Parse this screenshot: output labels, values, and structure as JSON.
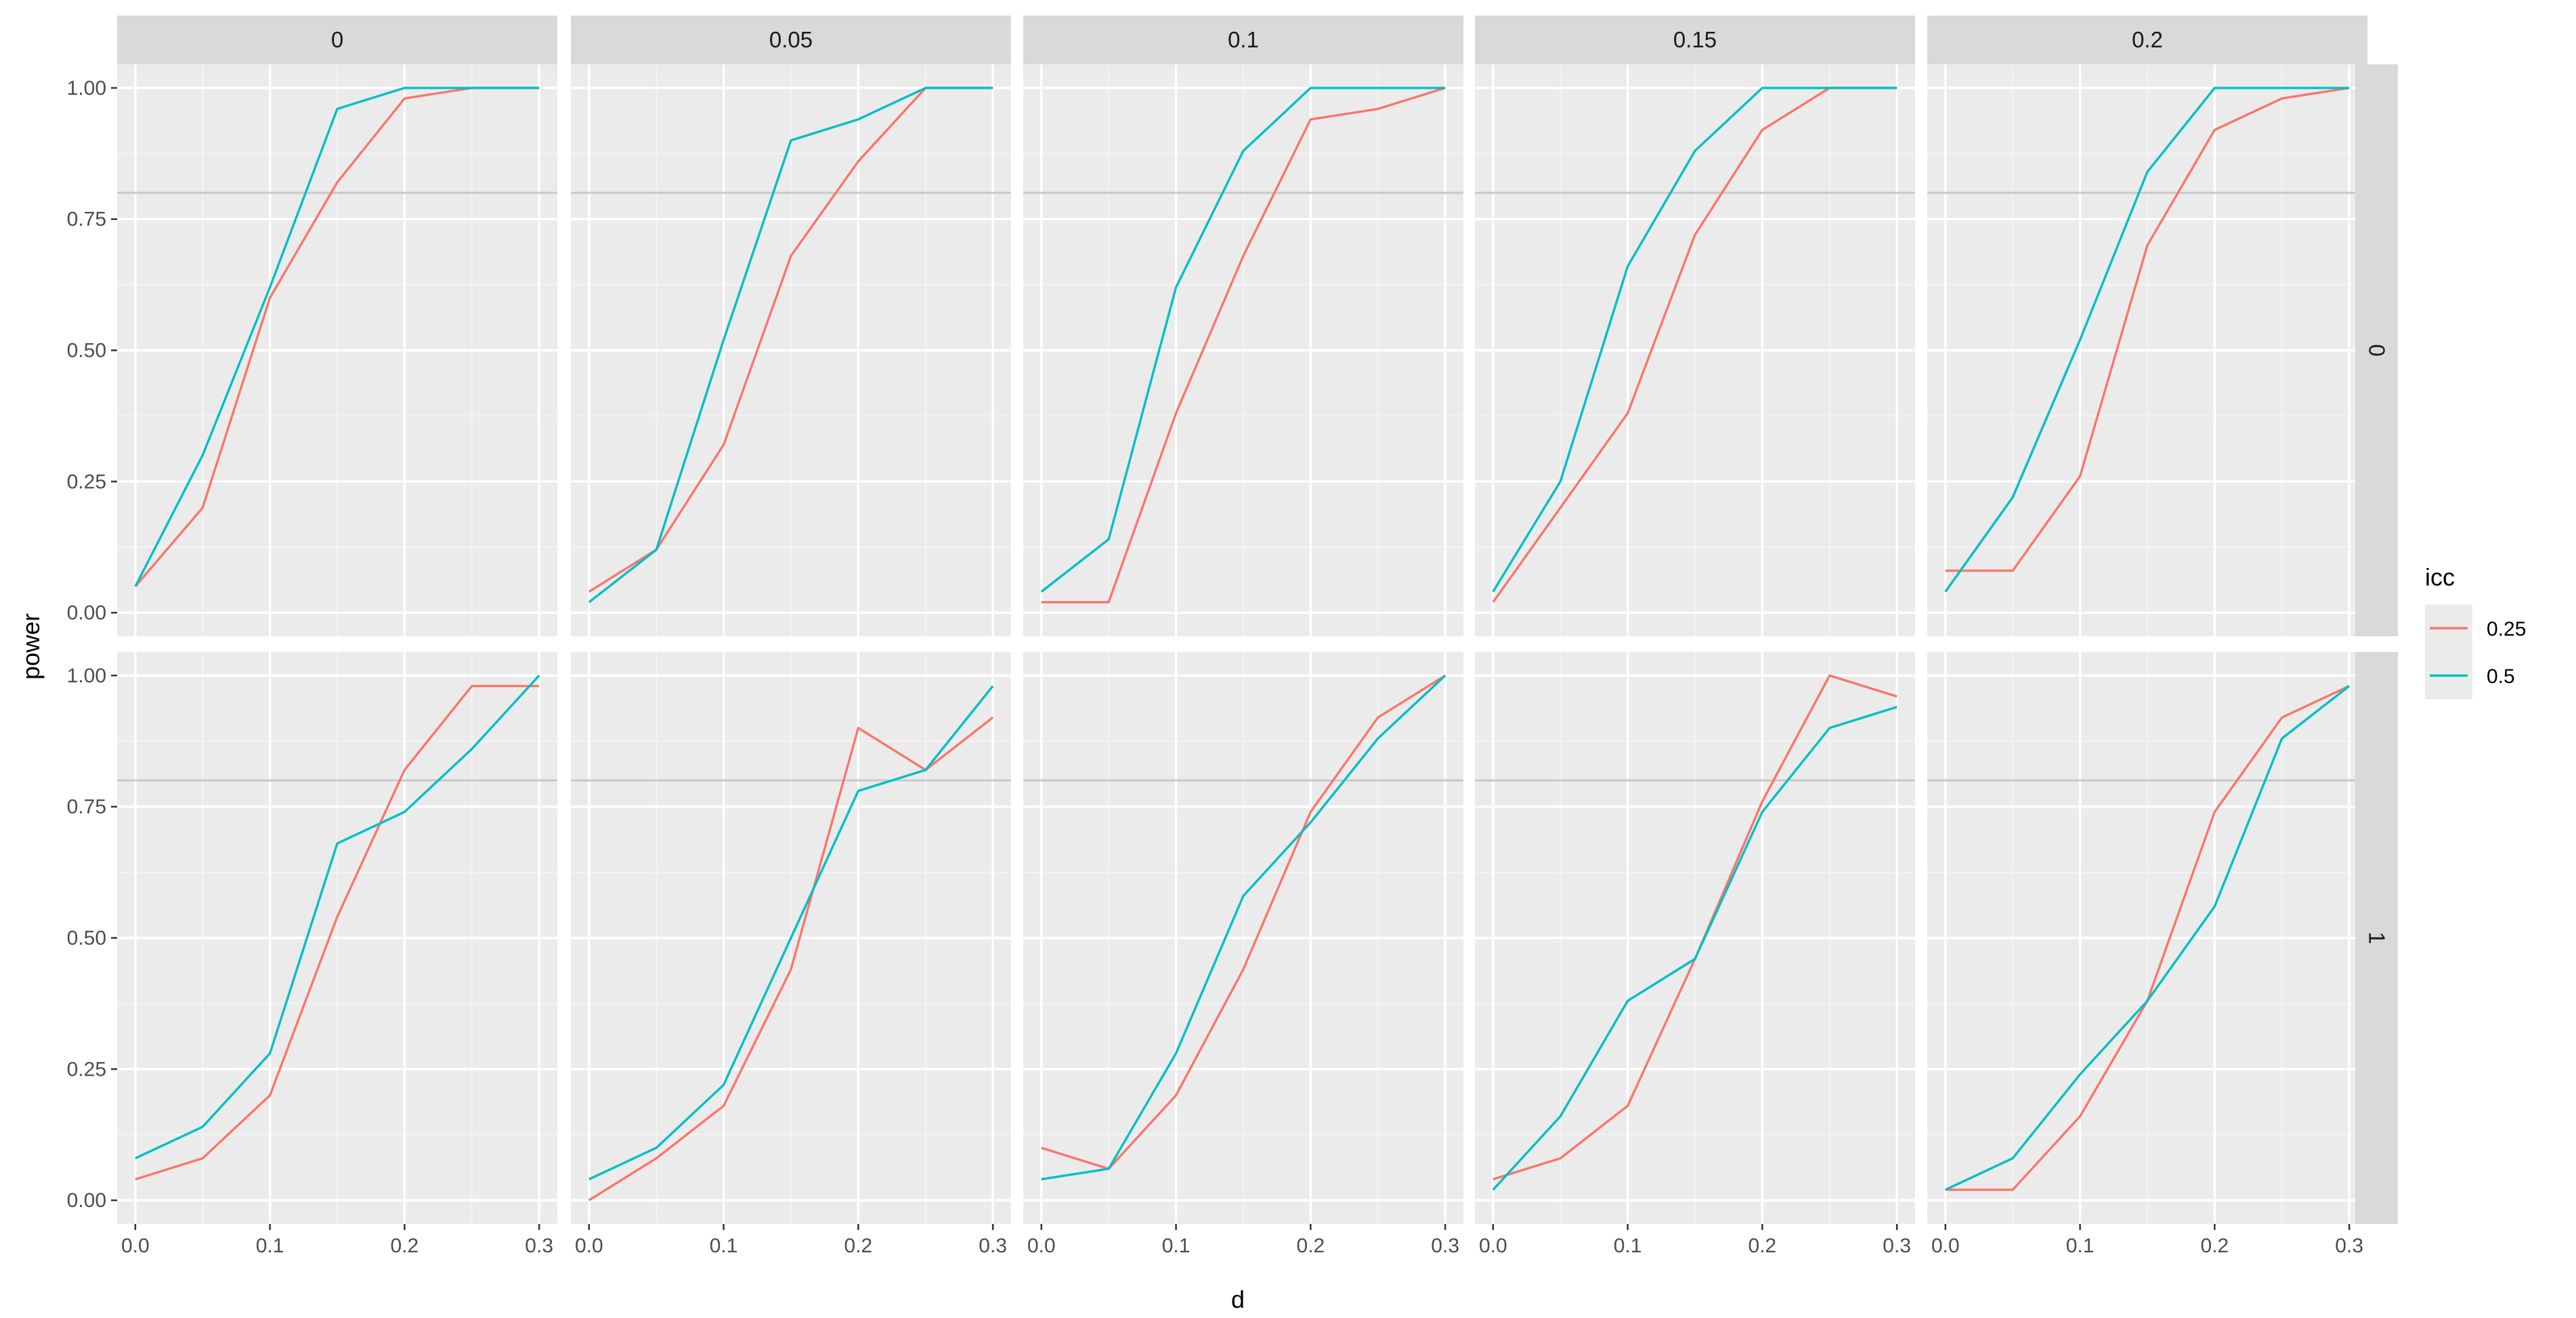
{
  "chart_data": {
    "type": "line",
    "xlabel": "d",
    "ylabel": "power",
    "xlim": [
      0,
      0.3
    ],
    "ylim": [
      0,
      1
    ],
    "x": [
      0,
      0.05,
      0.1,
      0.15,
      0.2,
      0.25,
      0.3
    ],
    "x_ticks": [
      "0.0",
      "0.1",
      "0.2",
      "0.3"
    ],
    "y_ticks": [
      "0.00",
      "0.25",
      "0.50",
      "0.75",
      "1.00"
    ],
    "reference_line_y": 0.8,
    "grid": true,
    "legend": {
      "title": "icc",
      "position": "right",
      "entries": [
        {
          "name": "0.25",
          "color": "#f8766d"
        },
        {
          "name": "0.5",
          "color": "#00bfc4"
        }
      ]
    },
    "facet_columns": [
      "0",
      "0.05",
      "0.1",
      "0.15",
      "0.2"
    ],
    "facet_rows": [
      "0",
      "1"
    ],
    "panels": [
      {
        "col": "0",
        "row": "0",
        "series": [
          {
            "name": "0.25",
            "values": [
              0.05,
              0.2,
              0.6,
              0.82,
              0.98,
              1.0,
              1.0
            ]
          },
          {
            "name": "0.5",
            "values": [
              0.05,
              0.3,
              0.62,
              0.96,
              1.0,
              1.0,
              1.0
            ]
          }
        ]
      },
      {
        "col": "0.05",
        "row": "0",
        "series": [
          {
            "name": "0.25",
            "values": [
              0.04,
              0.12,
              0.32,
              0.68,
              0.86,
              1.0,
              1.0
            ]
          },
          {
            "name": "0.5",
            "values": [
              0.02,
              0.12,
              0.52,
              0.9,
              0.94,
              1.0,
              1.0
            ]
          }
        ]
      },
      {
        "col": "0.1",
        "row": "0",
        "series": [
          {
            "name": "0.25",
            "values": [
              0.02,
              0.02,
              0.38,
              0.68,
              0.94,
              0.96,
              1.0
            ]
          },
          {
            "name": "0.5",
            "values": [
              0.04,
              0.14,
              0.62,
              0.88,
              1.0,
              1.0,
              1.0
            ]
          }
        ]
      },
      {
        "col": "0.15",
        "row": "0",
        "series": [
          {
            "name": "0.25",
            "values": [
              0.02,
              0.2,
              0.38,
              0.72,
              0.92,
              1.0,
              1.0
            ]
          },
          {
            "name": "0.5",
            "values": [
              0.04,
              0.25,
              0.66,
              0.88,
              1.0,
              1.0,
              1.0
            ]
          }
        ]
      },
      {
        "col": "0.2",
        "row": "0",
        "series": [
          {
            "name": "0.25",
            "values": [
              0.08,
              0.08,
              0.26,
              0.7,
              0.92,
              0.98,
              1.0
            ]
          },
          {
            "name": "0.5",
            "values": [
              0.04,
              0.22,
              0.52,
              0.84,
              1.0,
              1.0,
              1.0
            ]
          }
        ]
      },
      {
        "col": "0",
        "row": "1",
        "series": [
          {
            "name": "0.25",
            "values": [
              0.04,
              0.08,
              0.2,
              0.54,
              0.82,
              0.98,
              0.98
            ]
          },
          {
            "name": "0.5",
            "values": [
              0.08,
              0.14,
              0.28,
              0.68,
              0.74,
              0.86,
              1.0
            ]
          }
        ]
      },
      {
        "col": "0.05",
        "row": "1",
        "series": [
          {
            "name": "0.25",
            "values": [
              0.0,
              0.08,
              0.18,
              0.44,
              0.9,
              0.82,
              0.92
            ]
          },
          {
            "name": "0.5",
            "values": [
              0.04,
              0.1,
              0.22,
              0.5,
              0.78,
              0.82,
              0.98
            ]
          }
        ]
      },
      {
        "col": "0.1",
        "row": "1",
        "series": [
          {
            "name": "0.25",
            "values": [
              0.1,
              0.06,
              0.2,
              0.44,
              0.74,
              0.92,
              1.0
            ]
          },
          {
            "name": "0.5",
            "values": [
              0.04,
              0.06,
              0.28,
              0.58,
              0.72,
              0.88,
              1.0
            ]
          }
        ]
      },
      {
        "col": "0.15",
        "row": "1",
        "series": [
          {
            "name": "0.25",
            "values": [
              0.04,
              0.08,
              0.18,
              0.46,
              0.76,
              1.0,
              0.96
            ]
          },
          {
            "name": "0.5",
            "values": [
              0.02,
              0.16,
              0.38,
              0.46,
              0.74,
              0.9,
              0.94
            ]
          }
        ]
      },
      {
        "col": "0.2",
        "row": "1",
        "series": [
          {
            "name": "0.25",
            "values": [
              0.02,
              0.02,
              0.16,
              0.38,
              0.74,
              0.92,
              0.98
            ]
          },
          {
            "name": "0.5",
            "values": [
              0.02,
              0.08,
              0.24,
              0.38,
              0.56,
              0.88,
              0.98
            ]
          }
        ]
      }
    ]
  }
}
